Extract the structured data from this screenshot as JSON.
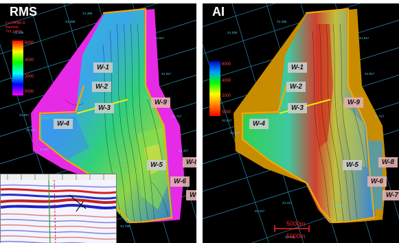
{
  "panels": {
    "left": {
      "title": "RMS",
      "legend_text": [
        "# # PRINK-B",
        "Random",
        "Tint_colors"
      ],
      "colorbar_ticks": [
        "6000",
        "4000",
        "2000",
        "0000"
      ],
      "colorbar_colors": [
        "#ff0000",
        "#ffff00",
        "#00ff00",
        "#00ffff",
        "#0000ff",
        "#ff00ff"
      ]
    },
    "right": {
      "title": "AI",
      "colorbar_ticks": [
        "6000",
        "4000",
        "2000",
        "0000"
      ],
      "colorbar_colors": [
        "#0000c0",
        "#00a0ff",
        "#00ff00",
        "#ffff00",
        "#ff8000",
        "#ff0000"
      ]
    }
  },
  "wells": [
    "W-1",
    "W-2",
    "W-3",
    "W-4",
    "W-5",
    "W-6",
    "W-7",
    "W-8",
    "W-9"
  ],
  "scale_bar": {
    "top": "5000m",
    "bottom": "5000m"
  },
  "grid_labels": [
    "X1.295",
    "X1.395",
    "X1.495",
    "X1.595",
    "X1.917",
    "X1.817",
    "X1.717",
    "X1.617",
    "X1.517",
    "X1.417",
    "X1.317",
    "X1.217",
    "X1.117",
    "X1.995",
    "X1.895",
    "X1.795"
  ],
  "colors": {
    "boundary": "#f5a800",
    "fault_line": "#e8f000",
    "grid": "#3cc8ff",
    "contour": "#111111"
  }
}
